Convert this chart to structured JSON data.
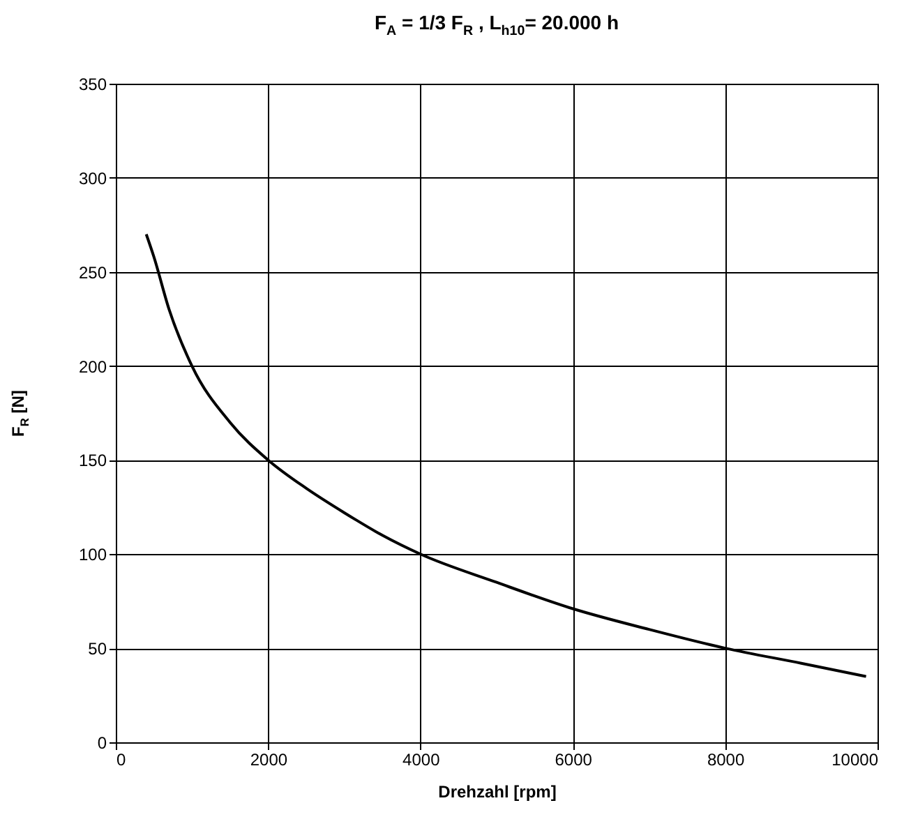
{
  "chart_data": {
    "type": "line",
    "title": "F$_{A}$ = 1/3 F$_{R}$ , L$_{h10}$= 20.000 h",
    "xlabel": "Drehzahl [rpm]",
    "ylabel": "F$_{R}$ [N]",
    "x": [
      400,
      500,
      700,
      1000,
      1500,
      2000,
      2500,
      3000,
      3500,
      4000,
      5000,
      6000,
      7000,
      8000,
      9000,
      9850
    ],
    "series": [
      {
        "color": "#000000",
        "values": [
          270,
          258,
          230,
          200,
          170,
          150,
          135,
          122,
          110,
          100,
          85,
          71,
          60,
          50,
          42,
          35
        ]
      }
    ],
    "xlim": [
      0,
      10000
    ],
    "xticks": [
      0,
      2000,
      4000,
      6000,
      8000,
      10000
    ],
    "ylim": [
      0,
      350
    ],
    "yticks": [
      0,
      50,
      100,
      150,
      200,
      250,
      300,
      350
    ],
    "grid": true,
    "marker": "none",
    "line_style": "solid"
  }
}
